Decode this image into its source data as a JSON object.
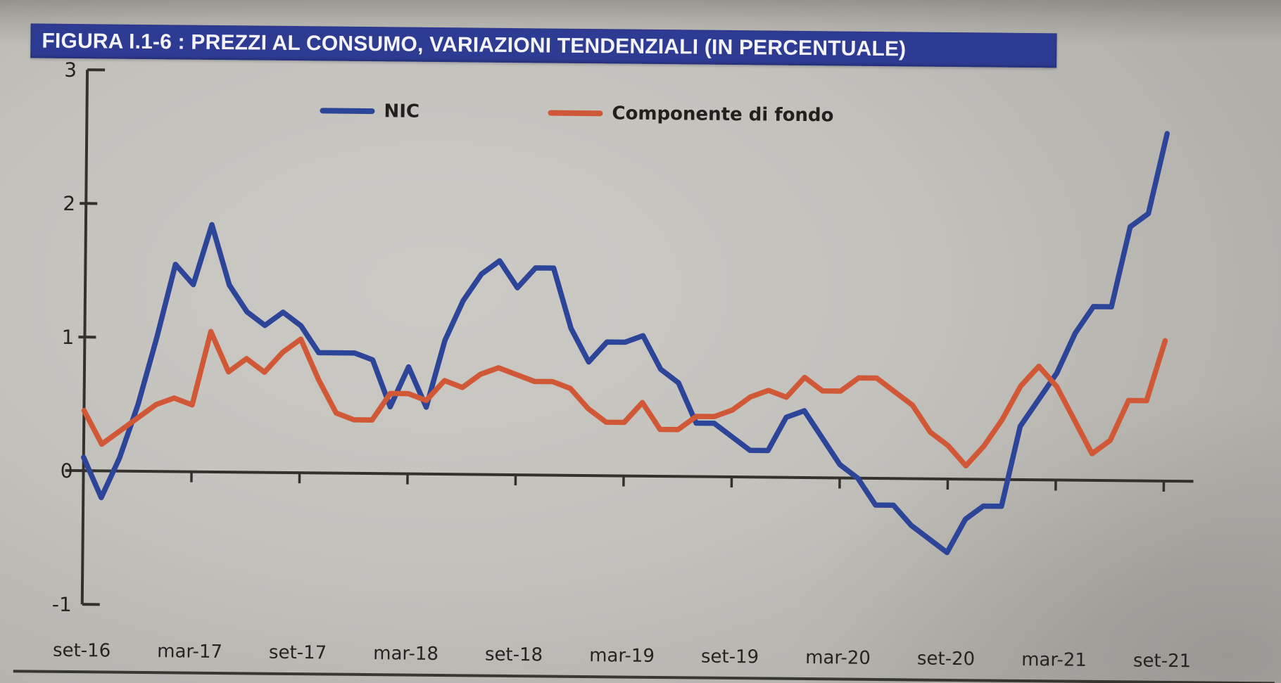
{
  "banner": {
    "title": "FIGURA I.1-6 : PREZZI AL CONSUMO, VARIAZIONI TENDENZIALI (IN PERCENTUALE)",
    "bg_color": "#2e3b92",
    "text_color": "#f4f4f6"
  },
  "chart_data": {
    "type": "line",
    "title": "FIGURA I.1-6 : PREZZI AL CONSUMO, VARIAZIONI TENDENZIALI (IN PERCENTUALE)",
    "frequency": "monthly",
    "x_start": "set-16",
    "x_end": "set-21",
    "x_tick_labels": [
      "set-16",
      "mar-17",
      "set-17",
      "mar-18",
      "set-18",
      "mar-19",
      "set-19",
      "mar-20",
      "set-20",
      "mar-21",
      "set-21"
    ],
    "y_ticks": [
      3,
      2,
      1,
      0,
      -1
    ],
    "ylim": [
      -1,
      3
    ],
    "grid": false,
    "legend_position": "top-center",
    "axis_color": "#33312c",
    "series": [
      {
        "name": "NIC",
        "color": "#2c4599",
        "values": [
          0.1,
          -0.2,
          0.1,
          0.5,
          1.0,
          1.55,
          1.4,
          1.85,
          1.4,
          1.2,
          1.1,
          1.2,
          1.1,
          0.9,
          0.9,
          0.9,
          0.85,
          0.5,
          0.8,
          0.5,
          1.0,
          1.3,
          1.5,
          1.6,
          1.4,
          1.55,
          1.55,
          1.1,
          0.85,
          1.0,
          1.0,
          1.05,
          0.8,
          0.7,
          0.4,
          0.4,
          0.3,
          0.2,
          0.2,
          0.45,
          0.5,
          0.3,
          0.1,
          0.0,
          -0.2,
          -0.2,
          -0.35,
          -0.45,
          -0.55,
          -0.3,
          -0.2,
          -0.2,
          0.4,
          0.6,
          0.8,
          1.1,
          1.3,
          1.3,
          1.9,
          2.0,
          2.6
        ]
      },
      {
        "name": "Componente di fondo",
        "color": "#d15836",
        "values": [
          0.45,
          0.2,
          0.3,
          0.4,
          0.5,
          0.55,
          0.5,
          1.05,
          0.75,
          0.85,
          0.75,
          0.9,
          1.0,
          0.7,
          0.45,
          0.4,
          0.4,
          0.6,
          0.6,
          0.55,
          0.7,
          0.65,
          0.75,
          0.8,
          0.75,
          0.7,
          0.7,
          0.65,
          0.5,
          0.4,
          0.4,
          0.55,
          0.35,
          0.35,
          0.45,
          0.45,
          0.5,
          0.6,
          0.65,
          0.6,
          0.75,
          0.65,
          0.65,
          0.75,
          0.75,
          0.65,
          0.55,
          0.35,
          0.25,
          0.1,
          0.25,
          0.45,
          0.7,
          0.85,
          0.7,
          0.45,
          0.2,
          0.3,
          0.6,
          0.6,
          1.05
        ]
      }
    ]
  }
}
